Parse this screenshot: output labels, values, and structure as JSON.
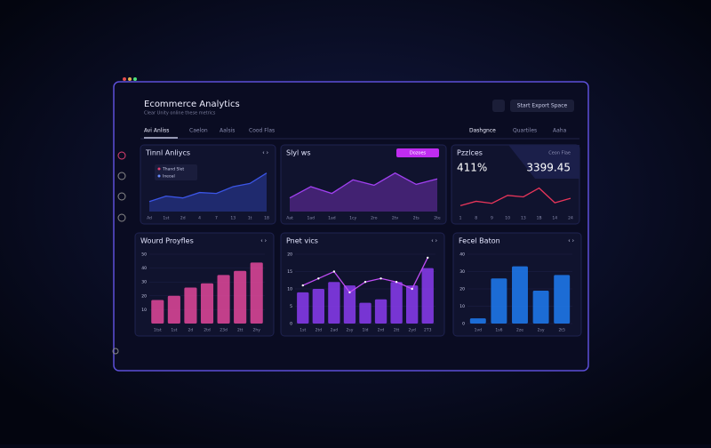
{
  "header": {
    "title": "Ecommerce Analytics",
    "subtitle": "Clear Unity online these metrics",
    "button": "Start Export Space"
  },
  "tabs": [
    "Avi Anliss",
    "Caelon",
    "Aalsis",
    "Cood Flas"
  ],
  "right_tabs": [
    "Dashgnce",
    "Quartiles",
    "Aaha"
  ],
  "panels": [
    {
      "title": "Tinnl Anliycs",
      "type": "area",
      "color": "#3b55e6",
      "legend": [
        "Thand Slet",
        "Ineoal"
      ],
      "categories": [
        "Ad",
        "1st",
        "2d",
        "4",
        "7",
        "13",
        "1t",
        "18"
      ],
      "values": [
        22,
        34,
        30,
        42,
        40,
        55,
        62,
        85
      ],
      "ylim": [
        0,
        100
      ]
    },
    {
      "title": "Slyl ws",
      "type": "area",
      "color": "#a040f0",
      "button": "Dozoes",
      "categories": [
        "Aat",
        "1ad",
        "1ad",
        "1cy",
        "2ro",
        "2tv",
        "2ts",
        "2te"
      ],
      "values": [
        30,
        55,
        40,
        70,
        58,
        85,
        60,
        72
      ],
      "ylim": [
        0,
        100
      ]
    },
    {
      "title": "Pzzlces",
      "type": "line",
      "color": "#e8355a",
      "stats": [
        "411%",
        "3399.45"
      ],
      "badge": "Ceon Flae",
      "categories": [
        "1",
        "8",
        "9",
        "10",
        "13",
        "1B",
        "14",
        "24"
      ],
      "values": [
        20,
        35,
        28,
        55,
        50,
        80,
        30,
        45
      ],
      "ylim": [
        0,
        100
      ]
    },
    {
      "title": "Wourd Proyfles",
      "type": "bar",
      "color": "#e2489a",
      "categories": [
        "1tst",
        "1st",
        "2d",
        "2td",
        "23d",
        "2tt",
        "2hy"
      ],
      "values": [
        17,
        20,
        26,
        29,
        35,
        38,
        44
      ],
      "ylim": [
        0,
        50
      ],
      "yticks": [
        10,
        20,
        30,
        40,
        50
      ]
    },
    {
      "title": "Pnet vics",
      "type": "bar_line",
      "color": "#8a3cf0",
      "line_color": "#c04cf5",
      "categories": [
        "1st",
        "2td",
        "2ad",
        "2sy",
        "1ld",
        "2rd",
        "2tt",
        "2yd",
        "2T3"
      ],
      "values": [
        9,
        10,
        12,
        11,
        6,
        7,
        12,
        11,
        16
      ],
      "line_values": [
        11,
        13,
        15,
        9,
        12,
        13,
        12,
        10,
        19
      ],
      "ylim": [
        0,
        20
      ],
      "yticks": [
        0,
        5,
        10,
        15,
        20
      ]
    },
    {
      "title": "Fecel Baton",
      "type": "bar",
      "color": "#1f7df2",
      "categories": [
        "1vd",
        "1s6",
        "2ze",
        "2sy",
        "2t5"
      ],
      "values": [
        3,
        26,
        33,
        19,
        28
      ],
      "ylim": [
        0,
        40
      ],
      "yticks": [
        0,
        10,
        20,
        30,
        40
      ]
    }
  ]
}
